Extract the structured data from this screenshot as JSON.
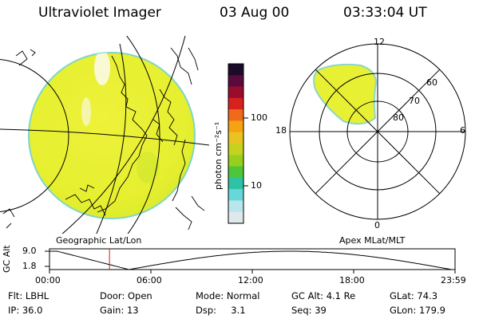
{
  "header": {
    "instrument": "Ultraviolet Imager",
    "date": "03 Aug 00",
    "time": "03:33:04 UT"
  },
  "left_panel": {
    "label": "Geographic Lat/Lon"
  },
  "right_panel": {
    "label": "Apex MLat/MLT",
    "mlt_labels": {
      "top": "12",
      "bottom": "0",
      "left": "18",
      "right": "6"
    },
    "lat_labels": [
      "60",
      "70",
      "80"
    ]
  },
  "colorbar": {
    "unit_label": "photon cm⁻²s⁻¹",
    "ticks": [
      "100",
      "10"
    ],
    "colors": [
      "#1b0b2a",
      "#5a0a3c",
      "#9a0c2c",
      "#d8201e",
      "#f06a1a",
      "#f6a213",
      "#e8c420",
      "#c6d21e",
      "#96d01c",
      "#4ec63a",
      "#2ec3a6",
      "#66d8da",
      "#b8e6ea",
      "#dfe8ea"
    ]
  },
  "altitude_plot": {
    "ylabel": "GC Alt",
    "yticks": [
      "9.0",
      "1.8"
    ],
    "xticks": [
      "00:00",
      "06:00",
      "12:00",
      "18:00",
      "23:59"
    ],
    "current_time_hours": 3.55
  },
  "info": {
    "row1": {
      "flt": "Flt: LBHL",
      "door": "Door: Open",
      "mode": "Mode: Normal",
      "gc_alt": "GC Alt: 4.1 Re",
      "glat": "GLat:  74.3"
    },
    "row2": {
      "ip": "IP: 36.0",
      "gain": "Gain: 13",
      "dsp": "Dsp:     3.1",
      "seq": "Seq: 39",
      "glon": "GLon: 179.9"
    }
  }
}
